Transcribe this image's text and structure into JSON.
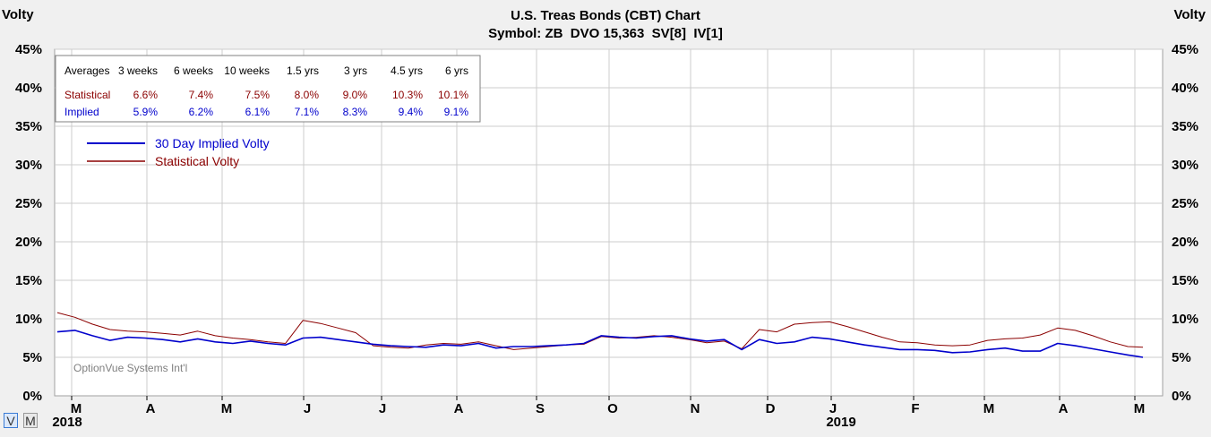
{
  "left_axis_title": "Volty",
  "right_axis_title": "Volty",
  "title_line1": "U.S. Treas Bonds (CBT) Chart",
  "title_line2": "Symbol: ZB  DVO 15,363  SV[8]  IV[1]",
  "watermark": "OptionVue Systems Int'l",
  "mode_buttons": [
    "V",
    "M"
  ],
  "colors": {
    "implied": "#0000cc",
    "statistical": "#8b0000",
    "grid": "#cccccc",
    "plot_bg": "#ffffff"
  },
  "averages_table": {
    "headers": [
      "Averages",
      "3 weeks",
      "6 weeks",
      "10 weeks",
      "1.5 yrs",
      "3 yrs",
      "4.5 yrs",
      "6 yrs"
    ],
    "rows": [
      {
        "label": "Statistical",
        "values": [
          "6.6%",
          "7.4%",
          "7.5%",
          "8.0%",
          "9.0%",
          "10.3%",
          "10.1%"
        ]
      },
      {
        "label": "Implied",
        "values": [
          "5.9%",
          "6.2%",
          "6.1%",
          "7.1%",
          "8.3%",
          "9.4%",
          "9.1%"
        ]
      }
    ]
  },
  "chart_data": {
    "type": "line",
    "y_tick_labels": [
      "0%",
      "5%",
      "10%",
      "15%",
      "20%",
      "25%",
      "30%",
      "35%",
      "40%",
      "45%"
    ],
    "ylim": [
      0,
      45
    ],
    "grid": true,
    "legend_position": "top-left",
    "x_month_labels": [
      "M",
      "A",
      "M",
      "J",
      "J",
      "A",
      "S",
      "O",
      "N",
      "D",
      "J",
      "F",
      "M",
      "A",
      "M"
    ],
    "x_year_labels": [
      "2018",
      "2019"
    ],
    "x": [
      "2018-03-01",
      "2018-03-08",
      "2018-03-15",
      "2018-03-22",
      "2018-03-29",
      "2018-04-05",
      "2018-04-12",
      "2018-04-19",
      "2018-04-26",
      "2018-05-03",
      "2018-05-10",
      "2018-05-17",
      "2018-05-24",
      "2018-05-31",
      "2018-06-07",
      "2018-06-14",
      "2018-06-21",
      "2018-06-28",
      "2018-07-05",
      "2018-07-12",
      "2018-07-19",
      "2018-07-26",
      "2018-08-02",
      "2018-08-09",
      "2018-08-16",
      "2018-08-23",
      "2018-08-30",
      "2018-09-06",
      "2018-09-13",
      "2018-09-20",
      "2018-09-27",
      "2018-10-04",
      "2018-10-11",
      "2018-10-18",
      "2018-10-25",
      "2018-11-01",
      "2018-11-08",
      "2018-11-15",
      "2018-11-22",
      "2018-11-29",
      "2018-12-06",
      "2018-12-13",
      "2018-12-20",
      "2018-12-27",
      "2019-01-03",
      "2019-01-10",
      "2019-01-17",
      "2019-01-24",
      "2019-01-31",
      "2019-02-07",
      "2019-02-14",
      "2019-02-21",
      "2019-02-28",
      "2019-03-07",
      "2019-03-14",
      "2019-03-21",
      "2019-03-28",
      "2019-04-04",
      "2019-04-11",
      "2019-04-18",
      "2019-04-25",
      "2019-05-02",
      "2019-05-08"
    ],
    "series": [
      {
        "name": "30 Day Implied Volty",
        "values": [
          8.3,
          8.5,
          7.8,
          7.2,
          7.6,
          7.5,
          7.3,
          7.0,
          7.4,
          7.0,
          6.8,
          7.1,
          6.8,
          6.6,
          7.5,
          7.6,
          7.3,
          7.0,
          6.7,
          6.5,
          6.4,
          6.3,
          6.6,
          6.5,
          6.8,
          6.2,
          6.4,
          6.4,
          6.5,
          6.6,
          6.8,
          7.8,
          7.6,
          7.5,
          7.7,
          7.8,
          7.4,
          7.1,
          7.3,
          6.0,
          7.3,
          6.8,
          7.0,
          7.6,
          7.4,
          7.0,
          6.6,
          6.3,
          6.0,
          6.0,
          5.9,
          5.6,
          5.7,
          6.0,
          6.2,
          5.8,
          5.8,
          6.8,
          6.5,
          6.1,
          5.7,
          5.3,
          5.0
        ]
      },
      {
        "name": "Statistical Volty",
        "values": [
          10.8,
          10.2,
          9.3,
          8.6,
          8.4,
          8.3,
          8.1,
          7.9,
          8.4,
          7.8,
          7.5,
          7.3,
          7.0,
          6.8,
          9.8,
          9.4,
          8.8,
          8.2,
          6.5,
          6.3,
          6.2,
          6.6,
          6.8,
          6.7,
          7.0,
          6.5,
          6.0,
          6.2,
          6.4,
          6.6,
          6.7,
          7.7,
          7.5,
          7.6,
          7.8,
          7.6,
          7.3,
          6.9,
          7.1,
          6.1,
          8.6,
          8.3,
          9.3,
          9.5,
          9.6,
          9.0,
          8.3,
          7.6,
          7.0,
          6.9,
          6.6,
          6.5,
          6.6,
          7.2,
          7.4,
          7.5,
          7.9,
          8.8,
          8.5,
          7.8,
          7.0,
          6.4,
          6.3
        ]
      }
    ]
  }
}
